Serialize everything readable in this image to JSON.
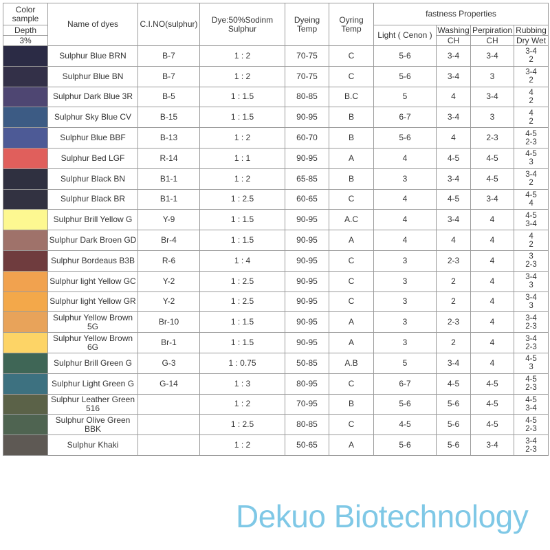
{
  "header": {
    "color_sample": "Color sample",
    "depth": "Depth",
    "depth_value": "3%",
    "name": "Name of dyes",
    "cino": "C.I.NO(sulphur)",
    "ratio": "Dye:50%Sodinm Sulphur",
    "dyeing_temp": "Dyeing Temp",
    "oyring_temp": "Oyring Temp",
    "fastness": "fastness Properties",
    "light": "Light ( Cenon )",
    "washing": "Washing",
    "washing_sub": "CH",
    "perspiration": "Perpiration",
    "perspiration_sub": "CH",
    "rubbing": "Rubbing",
    "rubbing_sub": "Dry Wet"
  },
  "rows": [
    {
      "color": "#2b2b45",
      "name": "Sulphur Blue BRN",
      "cino": "B-7",
      "ratio": "1 : 2",
      "dtemp": "70-75",
      "otemp": "C",
      "light": "5-6",
      "wash": "3-4",
      "persp": "3-4",
      "rub_dry": "3-4",
      "rub_wet": "2"
    },
    {
      "color": "#333048",
      "name": "Sulphur Blue BN",
      "cino": "B-7",
      "ratio": "1 : 2",
      "dtemp": "70-75",
      "otemp": "C",
      "light": "5-6",
      "wash": "3-4",
      "persp": "3",
      "rub_dry": "3-4",
      "rub_wet": "2"
    },
    {
      "color": "#4e4672",
      "name": "Sulphur Dark Blue 3R",
      "cino": "B-5",
      "ratio": "1 : 1.5",
      "dtemp": "80-85",
      "otemp": "B.C",
      "light": "5",
      "wash": "4",
      "persp": "3-4",
      "rub_dry": "4",
      "rub_wet": "2"
    },
    {
      "color": "#3c5b84",
      "name": "Sulphur Sky Blue CV",
      "cino": "B-15",
      "ratio": "1 : 1.5",
      "dtemp": "90-95",
      "otemp": "B",
      "light": "6-7",
      "wash": "3-4",
      "persp": "3",
      "rub_dry": "4",
      "rub_wet": "2"
    },
    {
      "color": "#4d5a96",
      "name": "Sulphur Blue BBF",
      "cino": "B-13",
      "ratio": "1 : 2",
      "dtemp": "60-70",
      "otemp": "B",
      "light": "5-6",
      "wash": "4",
      "persp": "2-3",
      "rub_dry": "4-5",
      "rub_wet": "2-3"
    },
    {
      "color": "#e05f5c",
      "name": "Sulphur Bed LGF",
      "cino": "R-14",
      "ratio": "1 : 1",
      "dtemp": "90-95",
      "otemp": "A",
      "light": "4",
      "wash": "4-5",
      "persp": "4-5",
      "rub_dry": "4-5",
      "rub_wet": "3"
    },
    {
      "color": "#2f3040",
      "name": "Sulphur Black BN",
      "cino": "B1-1",
      "ratio": "1 : 2",
      "dtemp": "65-85",
      "otemp": "B",
      "light": "3",
      "wash": "3-4",
      "persp": "4-5",
      "rub_dry": "3-4",
      "rub_wet": "2"
    },
    {
      "color": "#323241",
      "name": "Sulphur Black BR",
      "cino": "B1-1",
      "ratio": "1 : 2.5",
      "dtemp": "60-65",
      "otemp": "C",
      "light": "4",
      "wash": "4-5",
      "persp": "3-4",
      "rub_dry": "4-5",
      "rub_wet": "4"
    },
    {
      "color": "#fdf891",
      "name": "Sulphur Brill Yellow G",
      "cino": "Y-9",
      "ratio": "1 : 1.5",
      "dtemp": "90-95",
      "otemp": "A.C",
      "light": "4",
      "wash": "3-4",
      "persp": "4",
      "rub_dry": "4-5",
      "rub_wet": "3-4"
    },
    {
      "color": "#9f726a",
      "name": "Sulphur Dark Broen GD",
      "cino": "Br-4",
      "ratio": "1 : 1.5",
      "dtemp": "90-95",
      "otemp": "A",
      "light": "4",
      "wash": "4",
      "persp": "4",
      "rub_dry": "4",
      "rub_wet": "2"
    },
    {
      "color": "#6f3c3e",
      "name": "Sulphur Bordeaus B3B",
      "cino": "R-6",
      "ratio": "1 : 4",
      "dtemp": "90-95",
      "otemp": "C",
      "light": "3",
      "wash": "2-3",
      "persp": "4",
      "rub_dry": "3",
      "rub_wet": "2-3"
    },
    {
      "color": "#f1a24f",
      "name": "Sulphur light Yellow GC",
      "cino": "Y-2",
      "ratio": "1 : 2.5",
      "dtemp": "90-95",
      "otemp": "C",
      "light": "3",
      "wash": "2",
      "persp": "4",
      "rub_dry": "3-4",
      "rub_wet": "3"
    },
    {
      "color": "#f3a84a",
      "name": "Sulphur light Yellow GR",
      "cino": "Y-2",
      "ratio": "1 : 2.5",
      "dtemp": "90-95",
      "otemp": "C",
      "light": "3",
      "wash": "2",
      "persp": "4",
      "rub_dry": "3-4",
      "rub_wet": "3"
    },
    {
      "color": "#e8a35a",
      "name": "Sulphur Yellow Brown 5G",
      "cino": "Br-10",
      "ratio": "1 : 1.5",
      "dtemp": "90-95",
      "otemp": "A",
      "light": "3",
      "wash": "2-3",
      "persp": "4",
      "rub_dry": "3-4",
      "rub_wet": "2-3"
    },
    {
      "color": "#fdd466",
      "name": "Sulphur Yellow Brown 6G",
      "cino": "Br-1",
      "ratio": "1 : 1.5",
      "dtemp": "90-95",
      "otemp": "A",
      "light": "3",
      "wash": "2",
      "persp": "4",
      "rub_dry": "3-4",
      "rub_wet": "2-3"
    },
    {
      "color": "#3f6656",
      "name": "Sulphur Brill Green G",
      "cino": "G-3",
      "ratio": "1 : 0.75",
      "dtemp": "50-85",
      "otemp": "A.B",
      "light": "5",
      "wash": "3-4",
      "persp": "4",
      "rub_dry": "4-5",
      "rub_wet": "3"
    },
    {
      "color": "#3d7180",
      "name": "Sulphur Light Green G",
      "cino": "G-14",
      "ratio": "1 : 3",
      "dtemp": "80-95",
      "otemp": "C",
      "light": "6-7",
      "wash": "4-5",
      "persp": "4-5",
      "rub_dry": "4-5",
      "rub_wet": "2-3"
    },
    {
      "color": "#5b6248",
      "name": "Sulphur Leather Green 516",
      "cino": "",
      "ratio": "1 : 2",
      "dtemp": "70-95",
      "otemp": "B",
      "light": "5-6",
      "wash": "5-6",
      "persp": "4-5",
      "rub_dry": "4-5",
      "rub_wet": "3-4"
    },
    {
      "color": "#4f6451",
      "name": "Sulphur Olive Green BBK",
      "cino": "",
      "ratio": "1 : 2.5",
      "dtemp": "80-85",
      "otemp": "C",
      "light": "4-5",
      "wash": "5-6",
      "persp": "4-5",
      "rub_dry": "4-5",
      "rub_wet": "2-3"
    },
    {
      "color": "#5e5954",
      "name": "Sulphur Khaki",
      "cino": "",
      "ratio": "1 : 2",
      "dtemp": "50-65",
      "otemp": "A",
      "light": "5-6",
      "wash": "5-6",
      "persp": "3-4",
      "rub_dry": "3-4",
      "rub_wet": "2-3"
    }
  ],
  "brand": "Dekuo Biotechnology",
  "brand_color": "#7fc8e6"
}
